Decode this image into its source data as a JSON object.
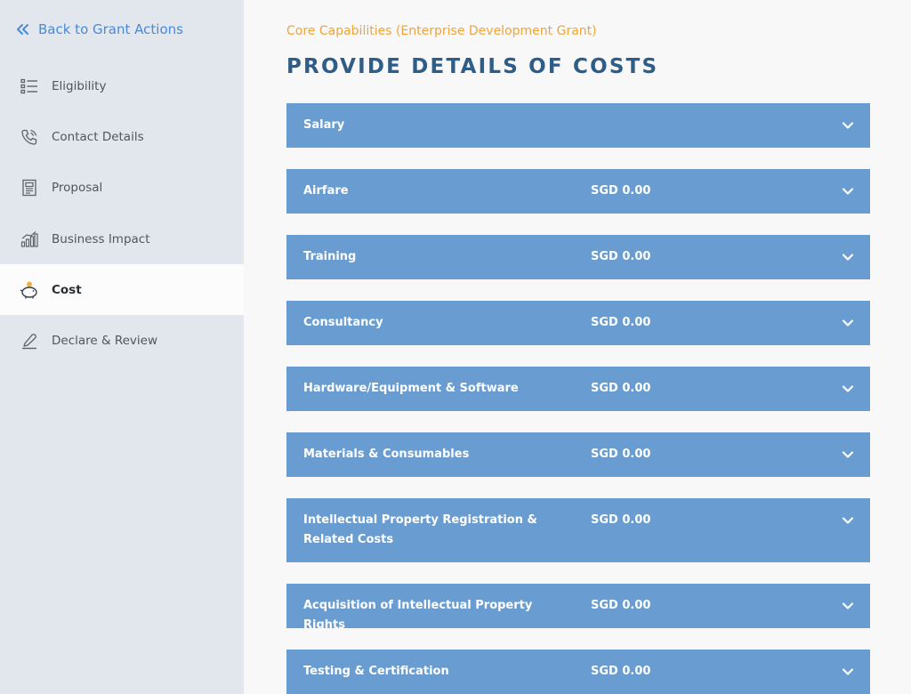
{
  "sidebar": {
    "back_label": "Back to Grant Actions",
    "items": [
      {
        "label": "Eligibility",
        "icon": "list-icon"
      },
      {
        "label": "Contact Details",
        "icon": "phone-icon"
      },
      {
        "label": "Proposal",
        "icon": "document-icon"
      },
      {
        "label": "Business Impact",
        "icon": "bar-chart-icon"
      },
      {
        "label": "Cost",
        "icon": "piggy-bank-icon",
        "active": true
      },
      {
        "label": "Declare & Review",
        "icon": "pen-icon"
      }
    ]
  },
  "main": {
    "subtitle": "Core Capabilities (Enterprise Development Grant)",
    "title": "PROVIDE DETAILS OF COSTS",
    "cost_items": [
      {
        "label": "Salary",
        "amount": ""
      },
      {
        "label": "Airfare",
        "amount": "SGD 0.00"
      },
      {
        "label": "Training",
        "amount": "SGD 0.00"
      },
      {
        "label": "Consultancy",
        "amount": "SGD 0.00"
      },
      {
        "label": "Hardware/Equipment & Software",
        "amount": "SGD 0.00"
      },
      {
        "label": "Materials & Consumables",
        "amount": "SGD 0.00"
      },
      {
        "label": "Intellectual Property Registration & Related Costs",
        "amount": "SGD 0.00"
      },
      {
        "label": "Acquisition of Intellectual Property Rights",
        "amount": "SGD 0.00"
      },
      {
        "label": "Testing & Certification",
        "amount": "SGD 0.00"
      }
    ]
  },
  "colors": {
    "sidebar_bg": "#e1e7ec",
    "accent_link": "#4a8ad6",
    "subtitle": "#f0a43a",
    "title": "#2e5d87",
    "row_bg": "#699dd1"
  }
}
